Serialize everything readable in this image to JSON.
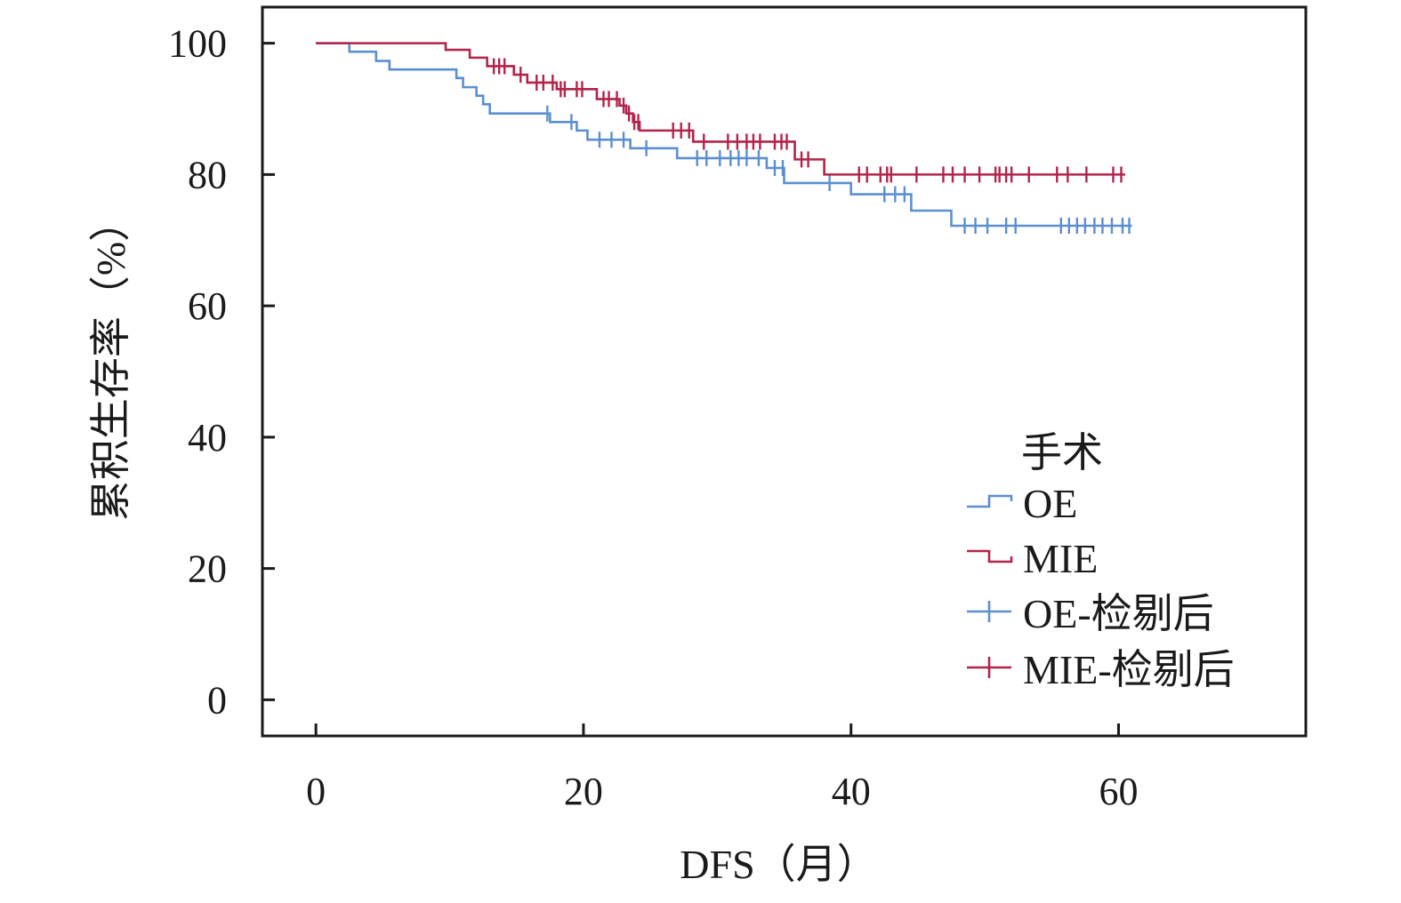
{
  "chart_data": {
    "type": "line",
    "subtype": "kaplan-meier-step",
    "title": "",
    "xlabel": "DFS（月）",
    "ylabel": "累积生存率（%）",
    "xlim": [
      -4,
      74
    ],
    "ylim": [
      -5.5,
      105.5
    ],
    "x_ticks": [
      0,
      20,
      40,
      60
    ],
    "y_ticks": [
      0,
      20,
      40,
      60,
      80,
      100
    ],
    "x_tick_labels": [
      "0",
      "20",
      "40",
      "60"
    ],
    "y_tick_labels": [
      "0",
      "20",
      "40",
      "60",
      "80",
      "100"
    ],
    "grid": false,
    "legend": {
      "title": "手术",
      "position": "bottom-right",
      "entries": [
        {
          "label": "OE",
          "series": "OE",
          "symbol": "step"
        },
        {
          "label": "MIE",
          "series": "MIE",
          "symbol": "step"
        },
        {
          "label": "OE-检剔后",
          "series": "OE",
          "symbol": "censor"
        },
        {
          "label": "MIE-检剔后",
          "series": "MIE",
          "symbol": "censor"
        }
      ]
    },
    "series": [
      {
        "name": "OE",
        "color": "#5b8fd0",
        "steps": [
          [
            0,
            100
          ],
          [
            2.5,
            98.7
          ],
          [
            4.5,
            97.3
          ],
          [
            5.5,
            96.0
          ],
          [
            10.5,
            94.7
          ],
          [
            11,
            93.3
          ],
          [
            12,
            92.0
          ],
          [
            12.5,
            90.7
          ],
          [
            13,
            89.3
          ],
          [
            17.5,
            88.0
          ],
          [
            19.5,
            86.7
          ],
          [
            20.3,
            85.3
          ],
          [
            23.5,
            84.0
          ],
          [
            27,
            82.5
          ],
          [
            33.7,
            81.0
          ],
          [
            35,
            78.7
          ],
          [
            40,
            77.0
          ],
          [
            44.5,
            74.5
          ],
          [
            47.5,
            72.2
          ]
        ],
        "end_x": 61,
        "censored": [
          17.3,
          19.1,
          21.2,
          22.1,
          23.0,
          24.7,
          28.5,
          29.2,
          30.2,
          31.0,
          31.6,
          32.2,
          33.1,
          34.3,
          34.9,
          38.4,
          42.5,
          43.3,
          44.0,
          48.5,
          49.3,
          50.2,
          51.6,
          52.3,
          55.7,
          56.3,
          56.9,
          57.5,
          58.2,
          58.8,
          59.5,
          60.3,
          60.8
        ]
      },
      {
        "name": "MIE",
        "color": "#b3244a",
        "steps": [
          [
            0,
            100
          ],
          [
            9.7,
            99.0
          ],
          [
            11.5,
            97.8
          ],
          [
            12.8,
            96.5
          ],
          [
            14.8,
            95.2
          ],
          [
            15.8,
            94.0
          ],
          [
            18.0,
            93.0
          ],
          [
            21.0,
            91.5
          ],
          [
            22.7,
            90.5
          ],
          [
            23.2,
            89.3
          ],
          [
            23.7,
            88.0
          ],
          [
            24.2,
            86.7
          ],
          [
            28.2,
            85.0
          ],
          [
            35.8,
            82.3
          ],
          [
            38,
            80.0
          ]
        ],
        "end_x": 60.5,
        "censored": [
          13.3,
          13.7,
          14.1,
          15.3,
          16.5,
          17.0,
          17.7,
          18.3,
          18.6,
          19.5,
          19.9,
          21.5,
          21.9,
          22.5,
          23.0,
          23.4,
          23.8,
          24.1,
          26.7,
          27.3,
          27.9,
          29.0,
          30.8,
          31.5,
          32.2,
          32.7,
          33.2,
          34.3,
          34.8,
          35.2,
          36.3,
          36.8,
          40.6,
          41.2,
          42.2,
          42.7,
          43.0,
          44.9,
          46.9,
          47.6,
          48.5,
          49.6,
          50.8,
          51.1,
          51.6,
          52.0,
          53.3,
          55.4,
          56.2,
          57.6,
          59.6,
          60.2
        ]
      }
    ]
  }
}
